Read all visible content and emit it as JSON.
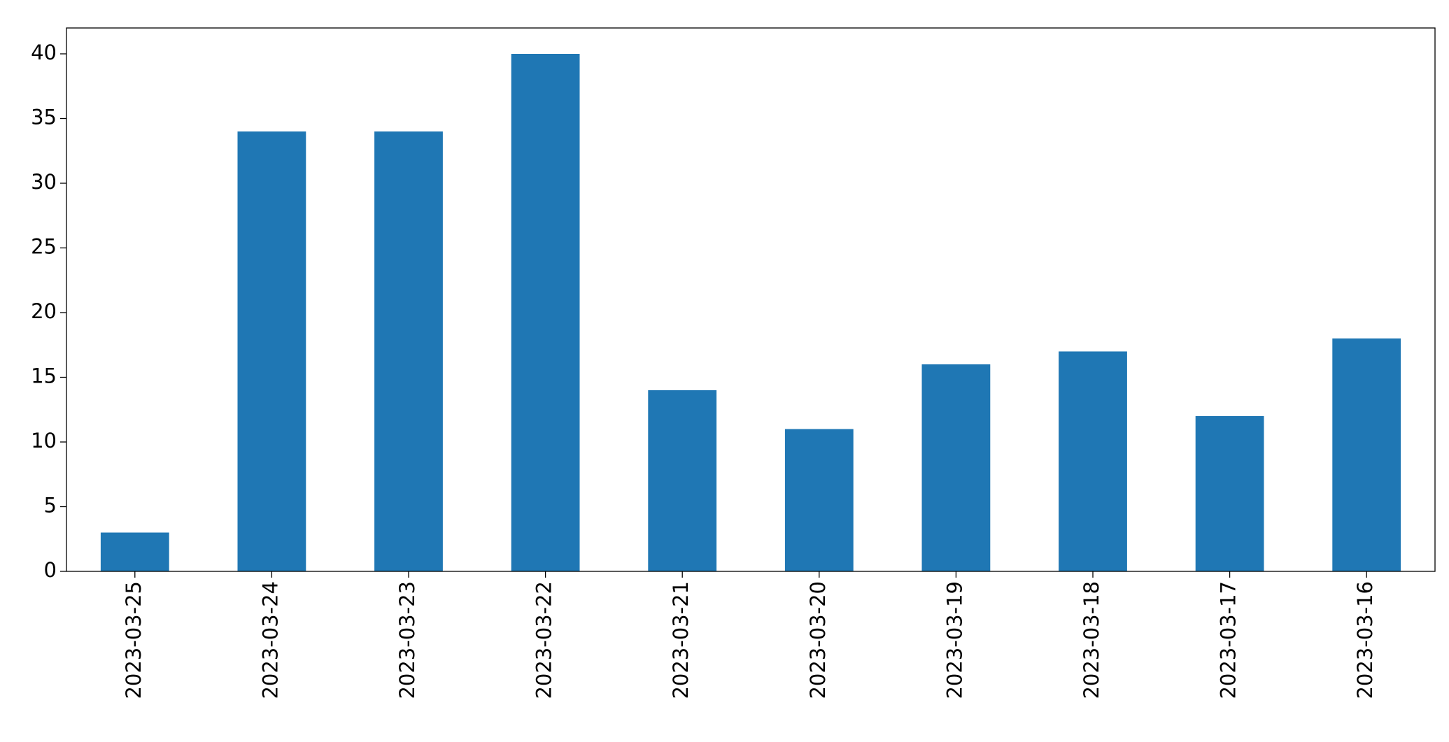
{
  "chart_data": {
    "type": "bar",
    "categories": [
      "2023-03-25",
      "2023-03-24",
      "2023-03-23",
      "2023-03-22",
      "2023-03-21",
      "2023-03-20",
      "2023-03-19",
      "2023-03-18",
      "2023-03-17",
      "2023-03-16"
    ],
    "values": [
      3,
      34,
      34,
      40,
      14,
      11,
      16,
      17,
      12,
      18
    ],
    "color": "#1f77b4",
    "ylim": [
      0,
      42
    ],
    "yticks": [
      0,
      5,
      10,
      15,
      20,
      25,
      30,
      35,
      40
    ],
    "grid": false
  }
}
